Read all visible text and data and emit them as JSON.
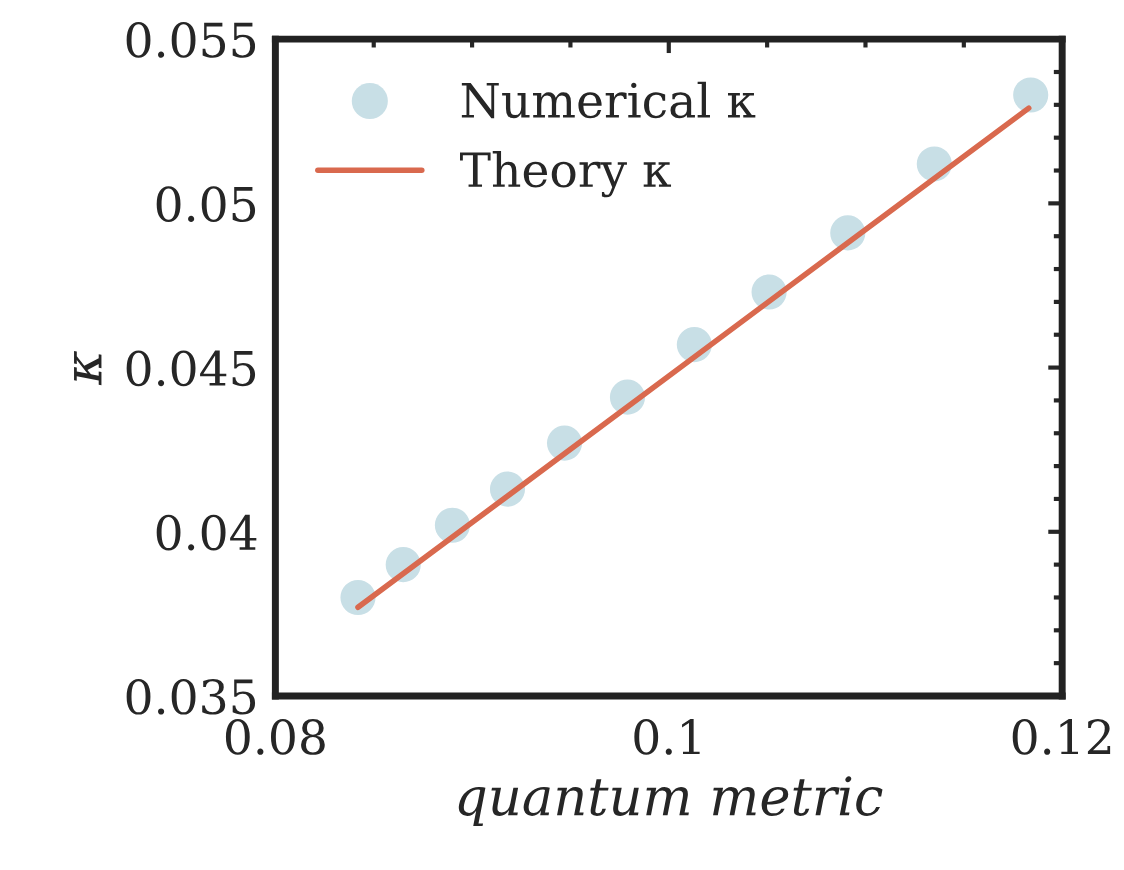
{
  "chart_data": {
    "type": "scatter",
    "xlabel": "quantum metric",
    "ylabel": "κ",
    "series": [
      {
        "name": "Numerical κ",
        "color": "#c8dfe6",
        "marker": "circle",
        "x": [
          0.0842,
          0.0865,
          0.089,
          0.0918,
          0.0947,
          0.0979,
          0.1013,
          0.1051,
          0.1091,
          0.1135,
          0.1184
        ],
        "values": [
          0.038,
          0.039,
          0.0402,
          0.0413,
          0.0427,
          0.0441,
          0.0457,
          0.0473,
          0.0491,
          0.0512,
          0.0533
        ]
      },
      {
        "name": "Theory κ",
        "type": "line",
        "color": "#d9694e",
        "line_style": "solid",
        "x": [
          0.0842,
          0.1183
        ],
        "values": [
          0.0377,
          0.0529
        ]
      }
    ],
    "xlim": [
      0.08,
      0.12
    ],
    "xticks": [
      0.08,
      0.1,
      0.12
    ],
    "ylim": [
      0.035,
      0.055
    ],
    "yticks": [
      0.035,
      0.04,
      0.045,
      0.05,
      0.055
    ],
    "grid": false,
    "legend": "top left"
  }
}
